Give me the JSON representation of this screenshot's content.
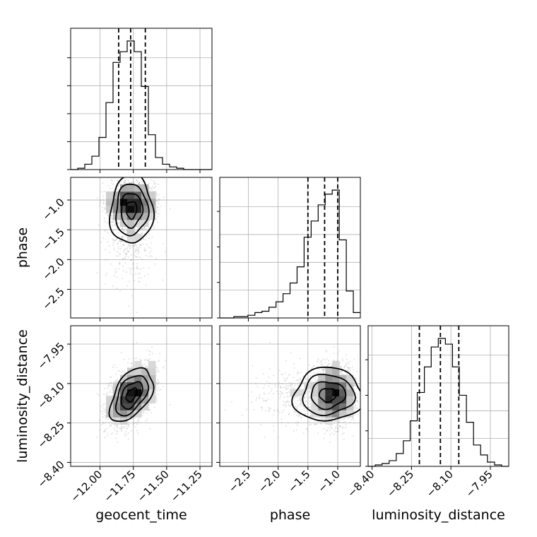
{
  "chart_data": {
    "type": "corner",
    "parameters": [
      "geocent_time",
      "phase",
      "luminosity_distance"
    ],
    "axis_labels": {
      "geocent_time": "geocent_time",
      "phase": "phase",
      "luminosity_distance": "luminosity_distance"
    },
    "ranges": {
      "geocent_time": [
        -12.22,
        -11.16
      ],
      "phase": [
        -2.98,
        -0.62
      ],
      "luminosity_distance": [
        -8.415,
        -7.88
      ]
    },
    "ticks": {
      "geocent_time": [
        -12.0,
        -11.75,
        -11.5,
        -11.25
      ],
      "phase": [
        -2.5,
        -2.0,
        -1.5,
        -1.0
      ],
      "luminosity_distance": [
        -8.4,
        -8.25,
        -8.1,
        -7.95
      ]
    },
    "tick_labels": {
      "geocent_time": [
        "−12.00",
        "−11.75",
        "−11.50",
        "−11.25"
      ],
      "phase": [
        "−2.5",
        "−2.0",
        "−1.5",
        "−1.0"
      ],
      "luminosity_distance": [
        "−8.40",
        "−8.25",
        "−8.10",
        "−7.95"
      ]
    },
    "quantiles": {
      "geocent_time": [
        -11.86,
        -11.77,
        -11.66
      ],
      "phase": [
        -1.5,
        -1.22,
        -1.0
      ],
      "luminosity_distance": [
        -8.22,
        -8.14,
        -8.07
      ]
    },
    "histograms": {
      "geocent_time": {
        "edges": [
          -12.22,
          -12.167,
          -12.114,
          -12.061,
          -12.008,
          -11.955,
          -11.902,
          -11.849,
          -11.796,
          -11.743,
          -11.69,
          -11.637,
          -11.584,
          -11.531,
          -11.478,
          -11.425,
          -11.372,
          -11.319,
          -11.266,
          -11.213,
          -11.16
        ],
        "counts": [
          0,
          1,
          4,
          10,
          24,
          50,
          80,
          88,
          96,
          88,
          62,
          26,
          9,
          4,
          2,
          1,
          0,
          0,
          0,
          0
        ]
      },
      "phase": {
        "edges": [
          -2.98,
          -2.862,
          -2.744,
          -2.626,
          -2.508,
          -2.39,
          -2.272,
          -2.154,
          -2.036,
          -1.918,
          -1.8,
          -1.682,
          -1.564,
          -1.446,
          -1.328,
          -1.21,
          -1.092,
          -0.974,
          -0.856,
          -0.738,
          -0.62
        ],
        "counts": [
          0,
          0,
          1,
          1,
          2,
          4,
          5,
          8,
          12,
          18,
          26,
          38,
          60,
          72,
          84,
          92,
          95,
          58,
          20,
          4
        ]
      },
      "luminosity_distance": {
        "edges": [
          -8.415,
          -8.388,
          -8.362,
          -8.335,
          -8.308,
          -8.281,
          -8.255,
          -8.228,
          -8.201,
          -8.175,
          -8.148,
          -8.121,
          -8.094,
          -8.068,
          -8.041,
          -8.014,
          -7.987,
          -7.961,
          -7.934,
          -7.907,
          -7.88
        ],
        "counts": [
          0,
          1,
          2,
          4,
          9,
          18,
          32,
          52,
          70,
          84,
          90,
          86,
          70,
          50,
          31,
          15,
          8,
          3,
          1,
          0
        ]
      }
    },
    "samples": {
      "count": 5000,
      "geocent_time": {
        "mean": -11.765,
        "sd": 0.085
      },
      "phase": {
        "mean": -1.22,
        "sd": 0.28,
        "skew": "left"
      },
      "luminosity_distance": {
        "mean": -8.145,
        "sd": 0.055
      },
      "corr_geocent_time_luminosity_distance": 0.45,
      "corr_geocent_time_phase": 0.0,
      "corr_phase_luminosity_distance": 0.05
    },
    "contour_levels_sigma": [
      0.5,
      1.0,
      1.5,
      2.0
    ],
    "density_grid_bins": 20,
    "grid": true
  }
}
